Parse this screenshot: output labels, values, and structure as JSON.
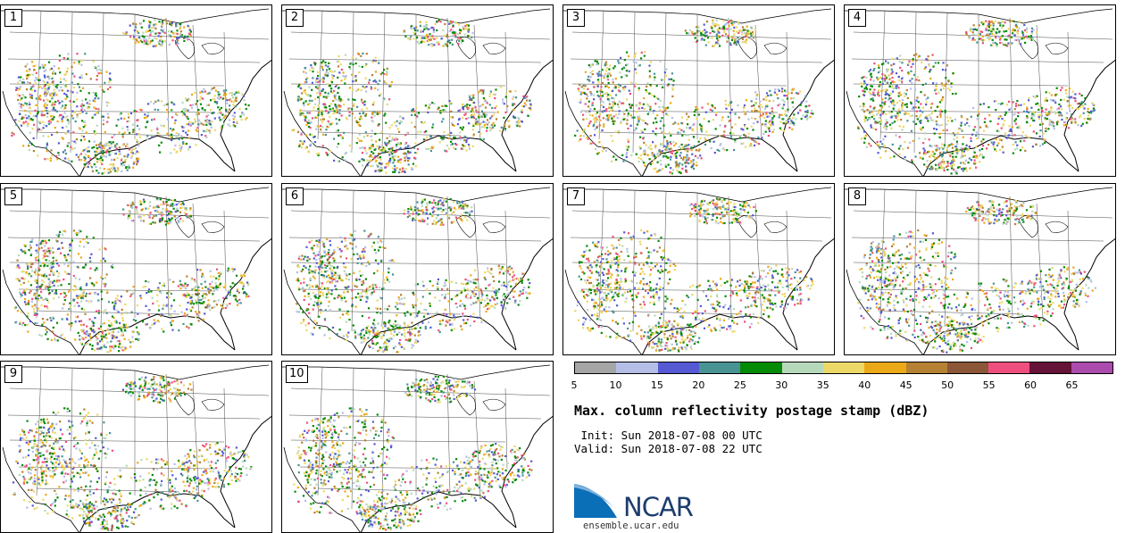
{
  "panels": [
    {
      "label": "1"
    },
    {
      "label": "2"
    },
    {
      "label": "3"
    },
    {
      "label": "4"
    },
    {
      "label": "5"
    },
    {
      "label": "6"
    },
    {
      "label": "7"
    },
    {
      "label": "8"
    },
    {
      "label": "9"
    },
    {
      "label": "10"
    }
  ],
  "colorbar": {
    "ticks": [
      "5",
      "10",
      "15",
      "20",
      "25",
      "30",
      "35",
      "40",
      "45",
      "50",
      "55",
      "60",
      "65"
    ],
    "colors": [
      "#a5a5a5",
      "#b4bee6",
      "#5559d4",
      "#4a9394",
      "#048a04",
      "#b7d9bb",
      "#ecd867",
      "#eca917",
      "#b68132",
      "#8c5638",
      "#ee4f7e",
      "#661338",
      "#aa4bad"
    ]
  },
  "title": "Max. column reflectivity postage stamp (dBZ)",
  "init_line": " Init: Sun 2018-07-08 00 UTC",
  "valid_line": "Valid: Sun 2018-07-08 22 UTC",
  "logo": {
    "name": "NCAR",
    "url": "ensemble.ucar.edu"
  }
}
